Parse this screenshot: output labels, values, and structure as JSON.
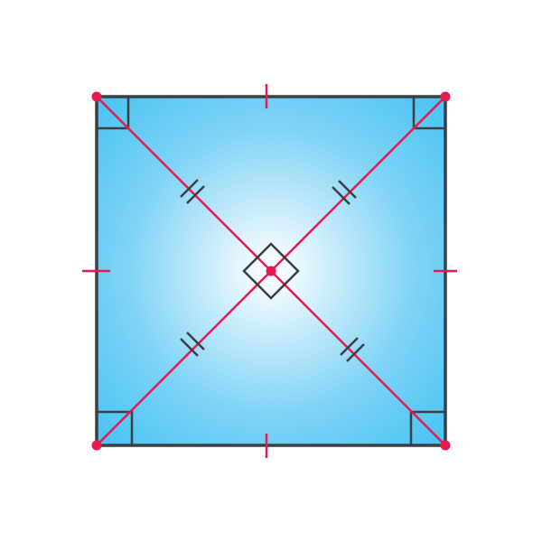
{
  "figure": {
    "shape": "square",
    "features": [
      "diagonals",
      "intersection-point",
      "right-angle-markers",
      "equal-side-ticks",
      "equal-segment-double-ticks",
      "vertex-points"
    ],
    "right_angle_markers": 5,
    "side_tick_marks": 4,
    "diagonal_double_tick_marks": 4,
    "vertex_points": 4,
    "center_point": 1
  },
  "colors": {
    "fill_center": "#ffffff",
    "fill_edge": "#3ec0f2",
    "outline": "#3a3f42",
    "diagonal": "#e8194f",
    "marker": "#3a3f42",
    "tick": "#e8194f",
    "point": "#e8194f"
  }
}
